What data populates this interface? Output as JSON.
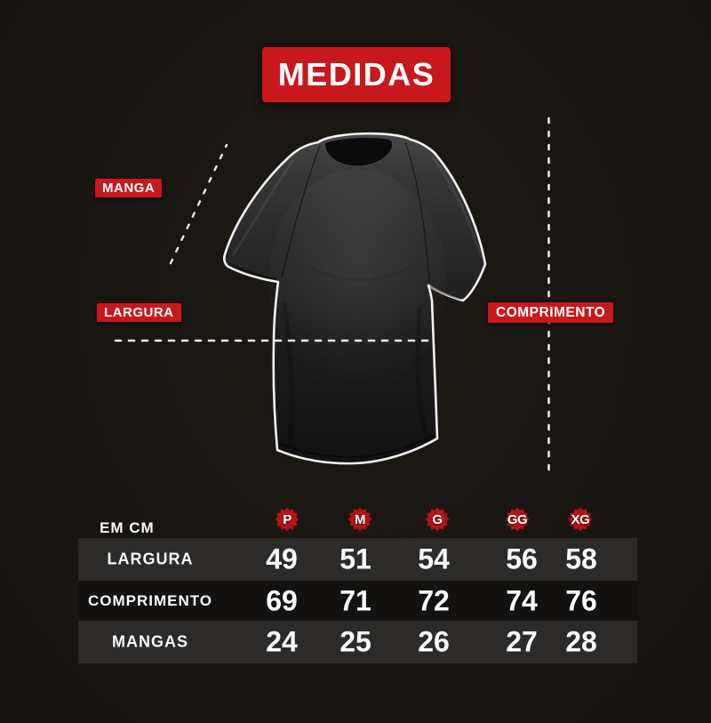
{
  "colors": {
    "background": "#191613",
    "accent_red": "#c8181d",
    "seal_red": "#b3141a",
    "row_light": "#2d2b29",
    "row_dark": "#141210",
    "text": "#fafafa"
  },
  "header": {
    "title": "MEDIDAS"
  },
  "diagram": {
    "measure_labels": {
      "sleeve": "MANGA",
      "width": "LARGURA",
      "length": "COMPRIMENTO"
    }
  },
  "size_table": {
    "unit_label": "EM CM",
    "sizes": [
      "P",
      "M",
      "G",
      "GG",
      "XG"
    ],
    "rows": [
      {
        "label": "LARGURA",
        "values": [
          "49",
          "51",
          "54",
          "56",
          "58"
        ]
      },
      {
        "label": "COMPRIMENTO",
        "values": [
          "69",
          "71",
          "72",
          "74",
          "76"
        ]
      },
      {
        "label": "MANGAS",
        "values": [
          "24",
          "25",
          "26",
          "27",
          "28"
        ]
      }
    ]
  },
  "chart_data": {
    "type": "table",
    "title": "MEDIDAS",
    "unit": "EM CM",
    "columns": [
      "P",
      "M",
      "G",
      "GG",
      "XG"
    ],
    "rows": [
      {
        "label": "LARGURA",
        "values": [
          49,
          51,
          54,
          56,
          58
        ]
      },
      {
        "label": "COMPRIMENTO",
        "values": [
          69,
          71,
          72,
          74,
          76
        ]
      },
      {
        "label": "MANGAS",
        "values": [
          24,
          25,
          26,
          27,
          28
        ]
      }
    ]
  }
}
